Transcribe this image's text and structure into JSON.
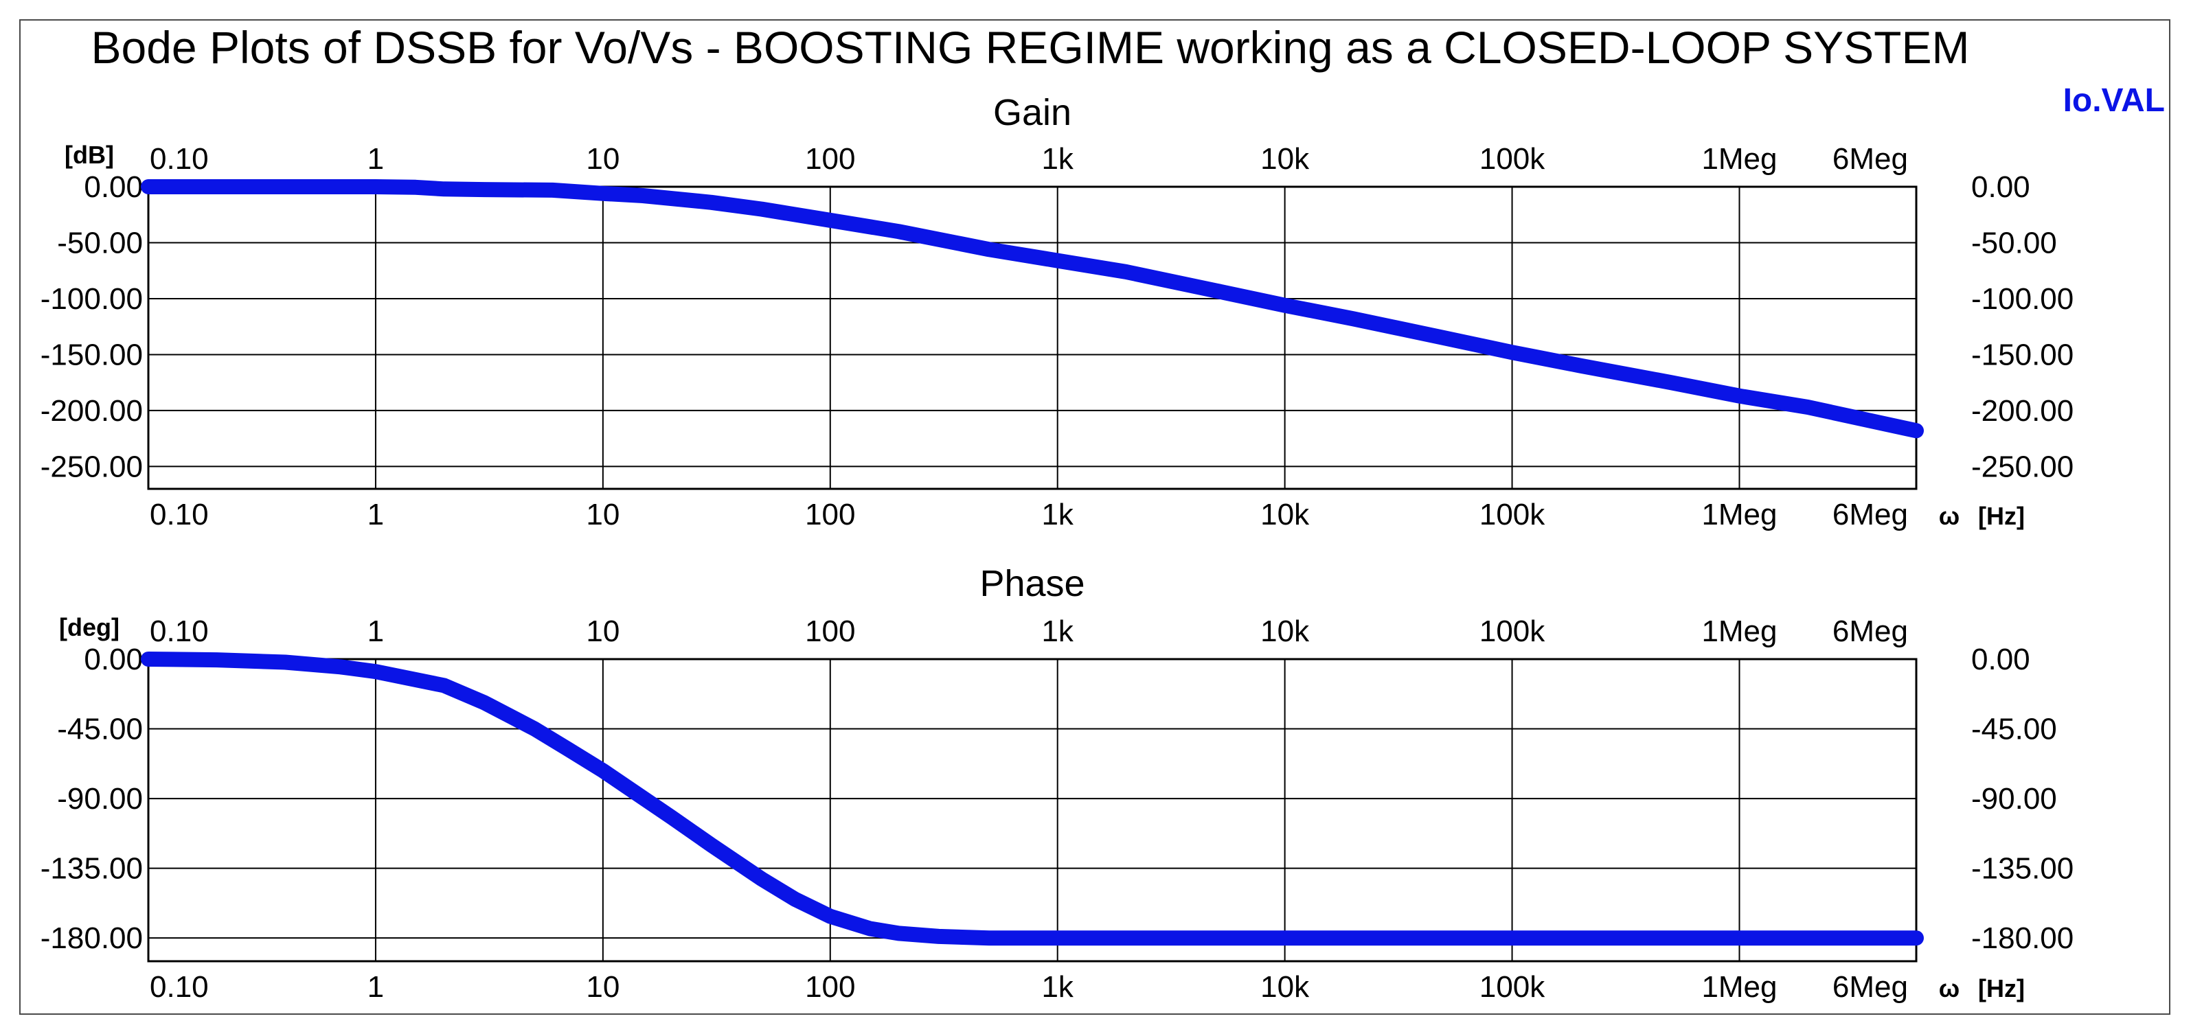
{
  "title": "Bode Plots of DSSB for Vo/Vs  - BOOSTING REGIME working as a CLOSED-LOOP SYSTEM",
  "legend_label": "Io.VAL",
  "legend_color": "#0a14e6",
  "chart_data": [
    {
      "type": "line",
      "title": "Gain",
      "ylabel": "[dB]",
      "xlabel_symbol": "ω",
      "xlabel_unit": "[Hz]",
      "x_scale": "log",
      "xlim": [
        0.1,
        6000000
      ],
      "ylim": [
        -270,
        0
      ],
      "x_ticks": [
        0.1,
        1,
        10,
        100,
        1000,
        10000,
        100000,
        1000000,
        6000000
      ],
      "x_tick_labels": [
        "0.10",
        "1",
        "10",
        "100",
        "1k",
        "10k",
        "100k",
        "1Meg",
        "6Meg"
      ],
      "y_ticks": [
        0,
        -50,
        -100,
        -150,
        -200,
        -250
      ],
      "y_tick_labels": [
        "0.00",
        "-50.00",
        "-100.00",
        "-150.00",
        "-200.00",
        "-250.00"
      ],
      "grid": true,
      "series": [
        {
          "name": "Io.VAL",
          "x": [
            0.1,
            1,
            1.5,
            2,
            3,
            6,
            10,
            15,
            30,
            50,
            100,
            200,
            500,
            1000,
            2000,
            5000,
            10000,
            20000,
            50000,
            100000,
            200000,
            500000,
            1000000,
            2000000,
            6000000
          ],
          "y": [
            0,
            0,
            -0.5,
            -2,
            -2.5,
            -3,
            -6,
            -8,
            -14,
            -20,
            -30,
            -40,
            -56,
            -66,
            -76,
            -93,
            -106,
            -118,
            -135,
            -148,
            -160,
            -175,
            -187,
            -197,
            -218
          ]
        }
      ]
    },
    {
      "type": "line",
      "title": "Phase",
      "ylabel": "[deg]",
      "xlabel_symbol": "ω",
      "xlabel_unit": "[Hz]",
      "x_scale": "log",
      "xlim": [
        0.1,
        6000000
      ],
      "ylim": [
        -195,
        0
      ],
      "x_ticks": [
        0.1,
        1,
        10,
        100,
        1000,
        10000,
        100000,
        1000000,
        6000000
      ],
      "x_tick_labels": [
        "0.10",
        "1",
        "10",
        "100",
        "1k",
        "10k",
        "100k",
        "1Meg",
        "6Meg"
      ],
      "y_ticks": [
        0,
        -45,
        -90,
        -135,
        -180
      ],
      "y_tick_labels": [
        "0.00",
        "-45.00",
        "-90.00",
        "-135.00",
        "-180.00"
      ],
      "grid": true,
      "series": [
        {
          "name": "Io.VAL",
          "x": [
            0.1,
            0.2,
            0.4,
            0.7,
            1,
            2,
            3,
            5,
            7,
            10,
            20,
            30,
            50,
            70,
            100,
            150,
            200,
            300,
            500,
            1000,
            2000,
            10000,
            100000,
            6000000
          ],
          "y": [
            0,
            -0.5,
            -2,
            -5,
            -8,
            -17,
            -28,
            -45,
            -58,
            -72,
            -102,
            -120,
            -142,
            -155,
            -166,
            -174,
            -177,
            -179,
            -180,
            -180,
            -180,
            -180,
            -180,
            -180
          ]
        }
      ]
    }
  ]
}
